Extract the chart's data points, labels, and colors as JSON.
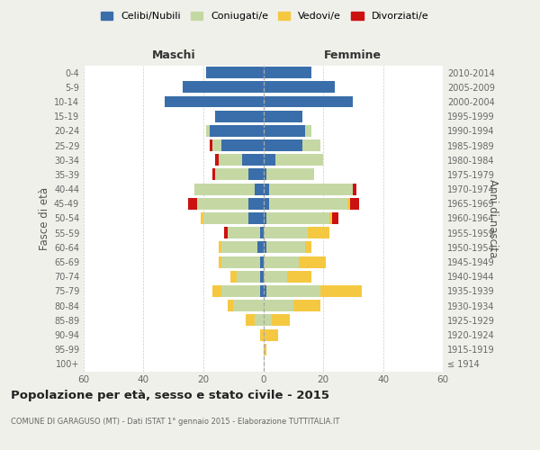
{
  "age_groups": [
    "100+",
    "95-99",
    "90-94",
    "85-89",
    "80-84",
    "75-79",
    "70-74",
    "65-69",
    "60-64",
    "55-59",
    "50-54",
    "45-49",
    "40-44",
    "35-39",
    "30-34",
    "25-29",
    "20-24",
    "15-19",
    "10-14",
    "5-9",
    "0-4"
  ],
  "birth_years": [
    "≤ 1914",
    "1915-1919",
    "1920-1924",
    "1925-1929",
    "1930-1934",
    "1935-1939",
    "1940-1944",
    "1945-1949",
    "1950-1954",
    "1955-1959",
    "1960-1964",
    "1965-1969",
    "1970-1974",
    "1975-1979",
    "1980-1984",
    "1985-1989",
    "1990-1994",
    "1995-1999",
    "2000-2004",
    "2005-2009",
    "2010-2014"
  ],
  "colors": {
    "celibe": "#3a6eaa",
    "coniugato": "#c5d8a4",
    "vedovo": "#f5c842",
    "divorziato": "#cc1111"
  },
  "males": {
    "celibe": [
      0,
      0,
      0,
      0,
      0,
      1,
      1,
      1,
      2,
      1,
      5,
      5,
      3,
      5,
      7,
      14,
      18,
      16,
      33,
      27,
      19
    ],
    "coniugato": [
      0,
      0,
      0,
      3,
      10,
      13,
      8,
      13,
      12,
      11,
      15,
      17,
      20,
      11,
      8,
      3,
      1,
      0,
      0,
      0,
      0
    ],
    "vedovo": [
      0,
      0,
      1,
      3,
      2,
      3,
      2,
      1,
      1,
      0,
      1,
      0,
      0,
      0,
      0,
      0,
      0,
      0,
      0,
      0,
      0
    ],
    "divorziato": [
      0,
      0,
      0,
      0,
      0,
      0,
      0,
      0,
      0,
      1,
      0,
      3,
      0,
      1,
      1,
      1,
      0,
      0,
      0,
      0,
      0
    ]
  },
  "females": {
    "nubile": [
      0,
      0,
      0,
      0,
      0,
      1,
      0,
      0,
      1,
      0,
      1,
      2,
      2,
      1,
      4,
      13,
      14,
      13,
      30,
      24,
      16
    ],
    "coniugata": [
      0,
      0,
      0,
      3,
      10,
      18,
      8,
      12,
      13,
      15,
      21,
      26,
      28,
      16,
      16,
      6,
      2,
      0,
      0,
      0,
      0
    ],
    "vedova": [
      0,
      1,
      5,
      6,
      9,
      14,
      8,
      9,
      2,
      7,
      1,
      1,
      0,
      0,
      0,
      0,
      0,
      0,
      0,
      0,
      0
    ],
    "divorziata": [
      0,
      0,
      0,
      0,
      0,
      0,
      0,
      0,
      0,
      0,
      2,
      3,
      1,
      0,
      0,
      0,
      0,
      0,
      0,
      0,
      0
    ]
  },
  "xlim": 60,
  "title": "Popolazione per età, sesso e stato civile - 2015",
  "subtitle": "COMUNE DI GARAGUSO (MT) - Dati ISTAT 1° gennaio 2015 - Elaborazione TUTTITALIA.IT",
  "ylabel_left": "Fasce di età",
  "ylabel_right": "Anni di nascita",
  "xlabel_male": "Maschi",
  "xlabel_female": "Femmine",
  "legend_labels": [
    "Celibi/Nubili",
    "Coniugati/e",
    "Vedovi/e",
    "Divorziati/e"
  ],
  "bg_color": "#f0f0eb",
  "plot_bg": "#ffffff"
}
